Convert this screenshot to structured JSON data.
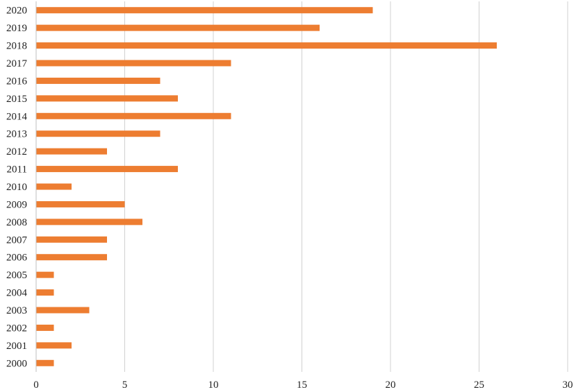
{
  "chart_data": {
    "type": "bar",
    "orientation": "horizontal",
    "categories": [
      "2020",
      "2019",
      "2018",
      "2017",
      "2016",
      "2015",
      "2014",
      "2013",
      "2012",
      "2011",
      "2010",
      "2009",
      "2008",
      "2007",
      "2006",
      "2005",
      "2004",
      "2003",
      "2002",
      "2001",
      "2000"
    ],
    "values": [
      19,
      16,
      26,
      11,
      7,
      8,
      11,
      7,
      4,
      8,
      2,
      5,
      6,
      4,
      4,
      1,
      1,
      3,
      1,
      2,
      1
    ],
    "xlim": [
      0,
      30
    ],
    "x_ticks": [
      "0",
      "5",
      "10",
      "15",
      "20",
      "25",
      "30"
    ],
    "grid": "vertical",
    "legend": "none",
    "bar_color": "#ED7D31"
  }
}
